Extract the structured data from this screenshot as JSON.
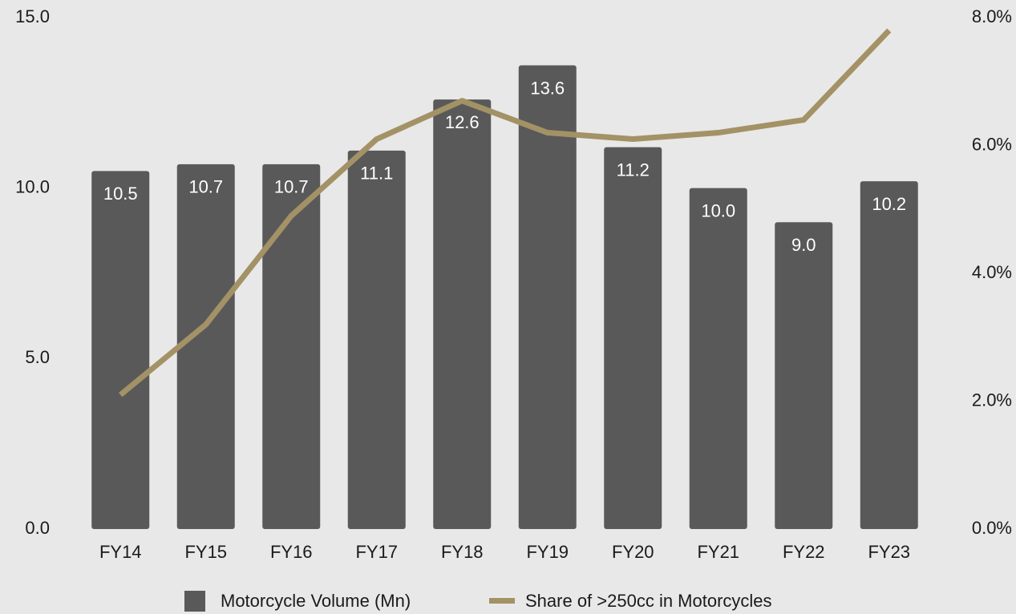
{
  "chart_data": {
    "type": "bar",
    "categories": [
      "FY14",
      "FY15",
      "FY16",
      "FY17",
      "FY18",
      "FY19",
      "FY20",
      "FY21",
      "FY22",
      "FY23"
    ],
    "series": [
      {
        "name": "Motorcycle Volume (Mn)",
        "type": "bar",
        "color": "#595959",
        "axis": "y",
        "values": [
          10.5,
          10.7,
          10.7,
          11.1,
          12.6,
          13.6,
          11.2,
          10.0,
          9.0,
          10.2
        ],
        "value_labels": [
          "10.5",
          "10.7",
          "10.7",
          "11.1",
          "12.6",
          "13.6",
          "11.2",
          "10.0",
          "9.0",
          "10.2"
        ]
      },
      {
        "name": "Share of >250cc in Motorcycles",
        "type": "line",
        "color": "#a39266",
        "axis": "y2",
        "values": [
          2.1,
          3.2,
          4.9,
          6.1,
          6.7,
          6.2,
          6.1,
          6.2,
          6.4,
          7.8
        ]
      }
    ],
    "ylim": [
      0,
      15
    ],
    "yticks": [
      {
        "value": 0,
        "label": "0.0"
      },
      {
        "value": 5,
        "label": "5.0"
      },
      {
        "value": 10,
        "label": "10.0"
      },
      {
        "value": 15,
        "label": "15.0"
      }
    ],
    "y2lim": [
      0,
      8
    ],
    "y2ticks": [
      {
        "value": 0,
        "label": "0.0%"
      },
      {
        "value": 2,
        "label": "2.0%"
      },
      {
        "value": 4,
        "label": "4.0%"
      },
      {
        "value": 6,
        "label": "6.0%"
      },
      {
        "value": 8,
        "label": "8.0%"
      }
    ],
    "grid": false,
    "legend": "bottom"
  }
}
